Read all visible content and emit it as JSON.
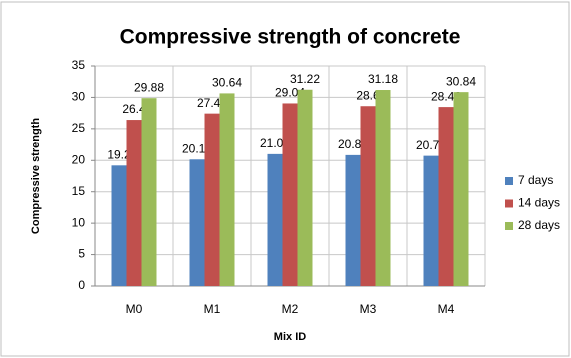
{
  "chart_data": {
    "type": "bar",
    "title": "Compressive strength of concrete",
    "xlabel": "Mix ID",
    "ylabel": "Compressive strength",
    "categories": [
      "M0",
      "M1",
      "M2",
      "M3",
      "M4"
    ],
    "series": [
      {
        "name": "7 days",
        "color": "#4f81bd",
        "values": [
          19.2,
          20.16,
          21.02,
          20.86,
          20.74
        ]
      },
      {
        "name": "14 days",
        "color": "#c0504d",
        "values": [
          26.4,
          27.42,
          29.04,
          28.6,
          28.46
        ]
      },
      {
        "name": "28 days",
        "color": "#9bbb59",
        "values": [
          29.88,
          30.64,
          31.22,
          31.18,
          30.84
        ]
      }
    ],
    "ylim": [
      0,
      35
    ],
    "yticks": [
      0,
      5,
      10,
      15,
      20,
      25,
      30,
      35
    ],
    "grid": true,
    "legend": "right"
  }
}
